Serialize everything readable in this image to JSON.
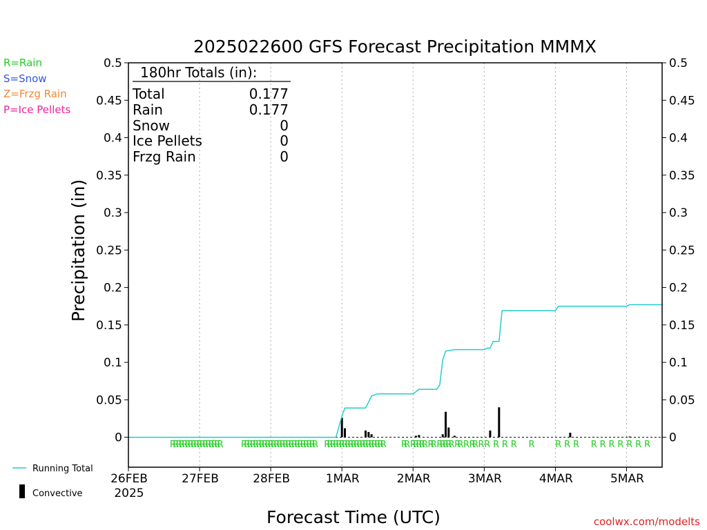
{
  "chart_data": {
    "type": "bar",
    "title": "2025022600 GFS Forecast Precipitation MMMX",
    "xlabel": "Forecast Time (UTC)",
    "ylabel": "Precipitation (in)",
    "ylim": [
      -0.04,
      0.5
    ],
    "y_ticks": [
      0,
      0.05,
      0.1,
      0.15,
      0.2,
      0.25,
      0.3,
      0.35,
      0.4,
      0.45,
      0.5
    ],
    "y_tick_labels": [
      "0",
      "0.05",
      "0.1",
      "0.15",
      "0.2",
      "0.25",
      "0.3",
      "0.35",
      "0.4",
      "0.45",
      "0.5"
    ],
    "x_unit": "forecast hour",
    "xlim": [
      0,
      180
    ],
    "x_ticks": [
      {
        "hour": 0,
        "label": "26FEB",
        "sublabel": "2025"
      },
      {
        "hour": 24,
        "label": "27FEB"
      },
      {
        "hour": 48,
        "label": "28FEB"
      },
      {
        "hour": 72,
        "label": "1MAR"
      },
      {
        "hour": 96,
        "label": "2MAR"
      },
      {
        "hour": 120,
        "label": "3MAR"
      },
      {
        "hour": 144,
        "label": "4MAR"
      },
      {
        "hour": 168,
        "label": "5MAR"
      }
    ],
    "grid_x": true,
    "totals_box": {
      "heading": "180hr Totals (in):",
      "rows": [
        {
          "label": "Total",
          "value": "0.177"
        },
        {
          "label": "Rain",
          "value": "0.177"
        },
        {
          "label": "Snow",
          "value": "0"
        },
        {
          "label": "Ice Pellets",
          "value": "0"
        },
        {
          "label": "Frzg Rain",
          "value": "0"
        }
      ]
    },
    "type_legend": [
      {
        "text": "R=Rain",
        "color": "#22cc22"
      },
      {
        "text": "S=Snow",
        "color": "#3355dd"
      },
      {
        "text": "Z=Frzg Rain",
        "color": "#ee8833"
      },
      {
        "text": "P=Ice Pellets",
        "color": "#ee2299"
      }
    ],
    "series": [
      {
        "name": "Running Total",
        "type": "line",
        "color": "#22cccc",
        "points": [
          [
            0,
            0
          ],
          [
            70,
            0
          ],
          [
            72,
            0.028
          ],
          [
            73,
            0.039
          ],
          [
            80,
            0.039
          ],
          [
            82,
            0.055
          ],
          [
            84,
            0.058
          ],
          [
            96,
            0.058
          ],
          [
            98,
            0.064
          ],
          [
            104,
            0.064
          ],
          [
            105,
            0.07
          ],
          [
            106,
            0.103
          ],
          [
            107,
            0.115
          ],
          [
            110,
            0.117
          ],
          [
            120,
            0.117
          ],
          [
            121,
            0.119
          ],
          [
            122,
            0.119
          ],
          [
            123,
            0.128
          ],
          [
            125,
            0.128
          ],
          [
            126,
            0.169
          ],
          [
            144,
            0.169
          ],
          [
            145,
            0.175
          ],
          [
            147,
            0.175
          ],
          [
            168,
            0.175
          ],
          [
            169,
            0.177
          ],
          [
            180,
            0.177
          ]
        ]
      },
      {
        "name": "Convective",
        "type": "bar",
        "color": "#000000",
        "bars": [
          [
            72,
            0.026
          ],
          [
            73,
            0.012
          ],
          [
            80,
            0.009
          ],
          [
            81,
            0.007
          ],
          [
            82,
            0.004
          ],
          [
            97,
            0.002
          ],
          [
            98,
            0.003
          ],
          [
            106,
            0.004
          ],
          [
            107,
            0.034
          ],
          [
            108,
            0.013
          ],
          [
            110,
            0.002
          ],
          [
            122,
            0.009
          ],
          [
            125,
            0.04
          ],
          [
            149,
            0.006
          ],
          [
            169,
            0.001
          ]
        ]
      }
    ],
    "precip_type_markers": {
      "color": "#22cc22",
      "hours": [
        15,
        16,
        17,
        18,
        19,
        20,
        21,
        22,
        23,
        24,
        25,
        26,
        27,
        28,
        29,
        30,
        31,
        39,
        40,
        41,
        42,
        43,
        44,
        45,
        46,
        47,
        48,
        49,
        50,
        51,
        52,
        53,
        54,
        55,
        56,
        57,
        58,
        59,
        60,
        61,
        62,
        63,
        67,
        68,
        69,
        70,
        71,
        72,
        73,
        74,
        75,
        76,
        77,
        78,
        79,
        80,
        81,
        82,
        83,
        84,
        85,
        86,
        93,
        94,
        96,
        97,
        98,
        99,
        100,
        102,
        103,
        105,
        106,
        107,
        108,
        109,
        111,
        112,
        114,
        116,
        117,
        119,
        121,
        124,
        127,
        130,
        136,
        145,
        148,
        151,
        157,
        160,
        163,
        166,
        169,
        172,
        175
      ],
      "label": "R"
    },
    "bottom_legend": [
      {
        "name": "Running Total",
        "symbol": "line"
      },
      {
        "name": "Convective",
        "symbol": "bar"
      }
    ],
    "credit": "coolwx.com/modelts"
  }
}
